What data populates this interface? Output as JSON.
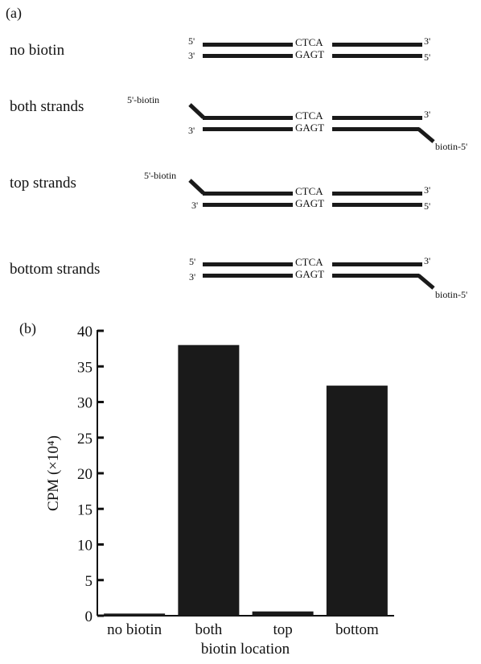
{
  "panel_a": {
    "label": "(a)",
    "rows": [
      {
        "label": "no biotin",
        "top_left": "5'",
        "top_right": "3'",
        "top_seq": "CTCA",
        "bottom_left": "3'",
        "bottom_right": "5'",
        "bottom_seq": "GAGT"
      },
      {
        "label": "both strands",
        "top_left": "5'-biotin",
        "top_right": "3'",
        "top_seq": "CTCA",
        "bottom_left": "3'",
        "bottom_right": "biotin-5'",
        "bottom_seq": "GAGT"
      },
      {
        "label": "top strands",
        "top_left": "5'-biotin",
        "top_right": "3'",
        "top_seq": "CTCA",
        "bottom_left": "3'",
        "bottom_right": "5'",
        "bottom_seq": "GAGT"
      },
      {
        "label": "bottom strands",
        "top_left": "5'",
        "top_right": "3'",
        "top_seq": "CTCA",
        "bottom_left": "3'",
        "bottom_right": "biotin-5'",
        "bottom_seq": "GAGT"
      }
    ]
  },
  "chart_data": {
    "type": "bar",
    "panel_label": "(b)",
    "categories": [
      "no biotin",
      "both",
      "top",
      "bottom"
    ],
    "values": [
      0.3,
      38.0,
      0.6,
      32.3
    ],
    "xlabel": "biotin location",
    "ylabel": "CPM (×10⁴)",
    "ylim": [
      0,
      40
    ],
    "yticks": [
      0,
      5,
      10,
      15,
      20,
      25,
      30,
      35,
      40
    ],
    "bar_color": "#1a1a1a",
    "grid": false
  }
}
